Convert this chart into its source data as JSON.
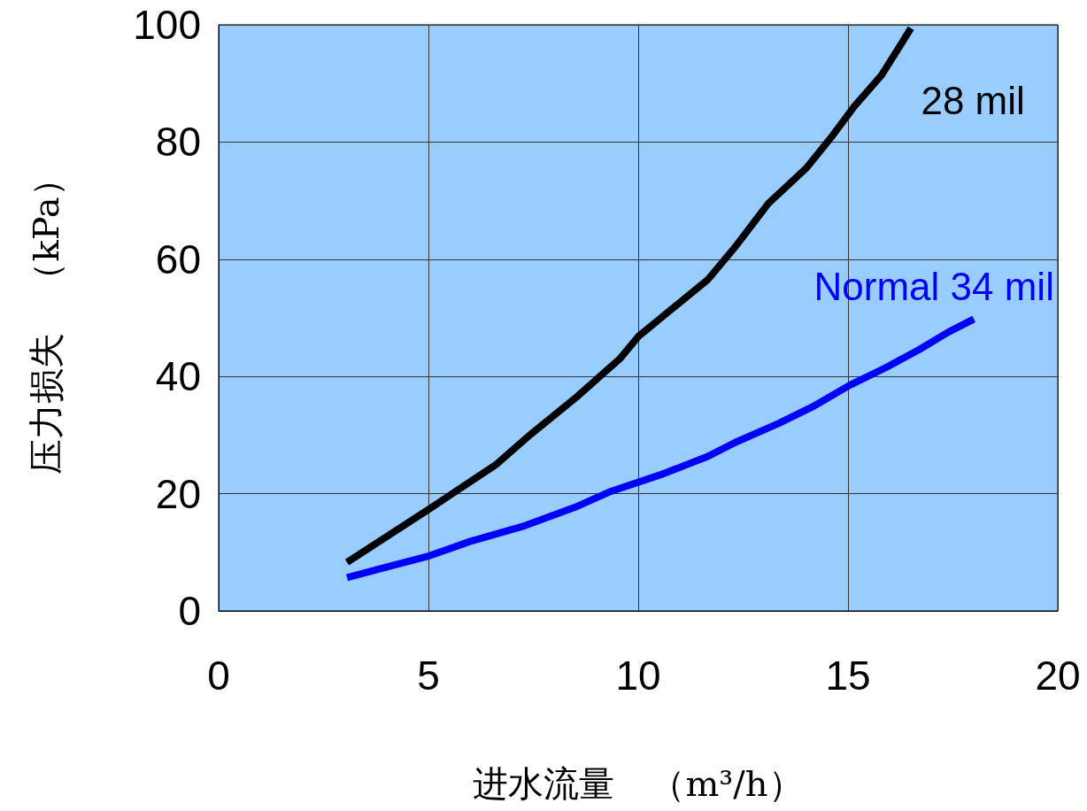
{
  "chart_data": {
    "type": "line",
    "xlabel": "进水流量　（m³/h）",
    "ylabel": "压力损失　（kPa）",
    "xlim": [
      0,
      20
    ],
    "xticks": [
      0,
      5,
      10,
      15,
      20
    ],
    "ylim": [
      0,
      100
    ],
    "yticks": [
      0,
      20,
      40,
      60,
      80,
      100
    ],
    "grid": true,
    "legend": false,
    "marker": "none",
    "line_style": "solid",
    "series": [
      {
        "name": "28 mil",
        "color": "#000000",
        "x": [
          3.06,
          5.02,
          6.6,
          7.45,
          8.5,
          9.56,
          10,
          11.67,
          12.3,
          13.1,
          14,
          14.6,
          15.15,
          15.8,
          16.5
        ],
        "values": [
          8.3,
          17.4,
          24.9,
          30.2,
          36.3,
          43,
          46.8,
          56.6,
          62,
          69.5,
          75.5,
          80.8,
          86.1,
          91.4,
          99.4
        ]
      },
      {
        "name": "Normal 34 mil",
        "color": "#0000ff",
        "x": [
          3.06,
          4.07,
          5.02,
          5.97,
          7.24,
          8.5,
          9.35,
          10.6,
          11.67,
          12.3,
          13.35,
          14.2,
          15.04,
          15.9,
          16.7,
          17.4,
          18
        ],
        "values": [
          5.7,
          7.6,
          9.4,
          11.8,
          14.4,
          17.7,
          20.4,
          23.4,
          26.4,
          28.7,
          32,
          35,
          38.5,
          41.5,
          44.6,
          47.6,
          49.8
        ]
      }
    ]
  }
}
